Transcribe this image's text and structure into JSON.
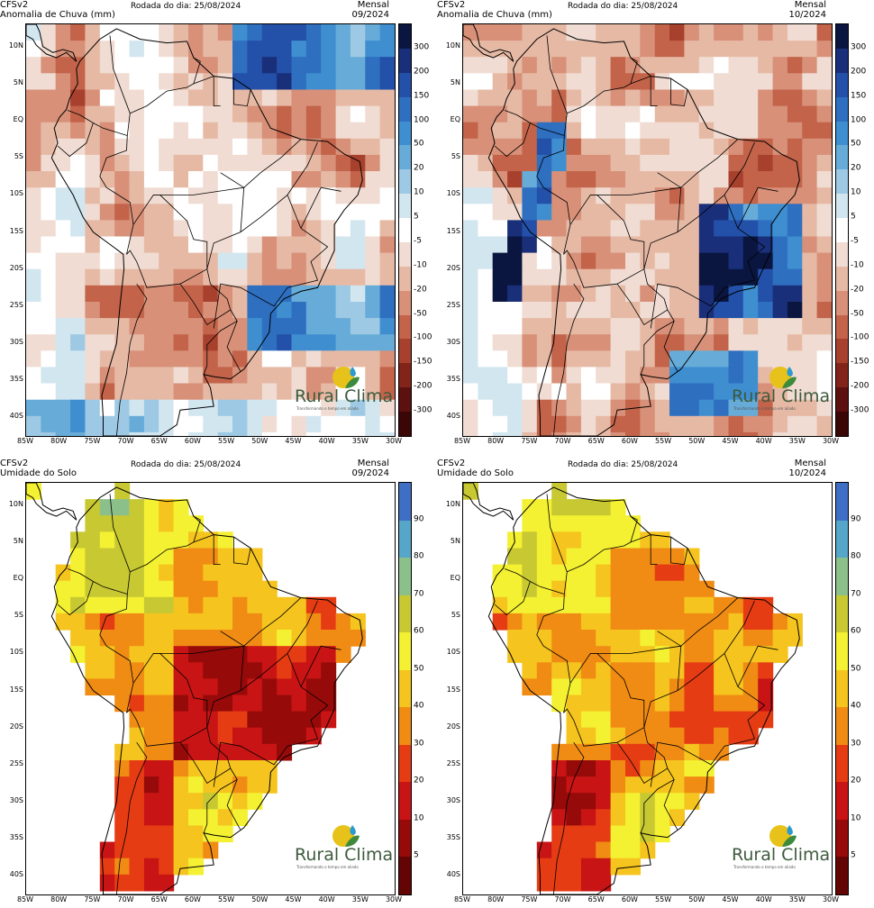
{
  "panels": [
    {
      "model": "CFSv2",
      "variable": "Anomalia de Chuva (mm)",
      "run": "Rodada do dia: 25/08/2024",
      "period": "Mensal",
      "month": "09/2024",
      "scale": "rain",
      "lat_labels": [
        "10N",
        "5N",
        "EQ",
        "5S",
        "10S",
        "15S",
        "20S",
        "25S",
        "30S",
        "35S",
        "40S"
      ],
      "lon_labels": [
        "85W",
        "80W",
        "75W",
        "70W",
        "65W",
        "60W",
        "55W",
        "50W",
        "45W",
        "40W",
        "35W",
        "30W"
      ],
      "colorbar_labels": [
        "300",
        "200",
        "150",
        "100",
        "50",
        "20",
        "10",
        "5",
        "-5",
        "-10",
        "-20",
        "-50",
        "-100",
        "-150",
        "-200",
        "-300"
      ],
      "colorbar_colors": [
        "#0a1640",
        "#1a2f7a",
        "#2350a8",
        "#2e6fc0",
        "#3f8ed0",
        "#67acd8",
        "#9ec9e4",
        "#d2e6f0",
        "#ffffff",
        "#f0dcd2",
        "#e6b9a5",
        "#d89078",
        "#c2634a",
        "#a8402e",
        "#822419",
        "#5c1010",
        "#3a0606"
      ]
    },
    {
      "model": "CFSv2",
      "variable": "Anomalia de Chuva (mm)",
      "run": "Rodada do dia: 25/08/2024",
      "period": "Mensal",
      "month": "10/2024",
      "scale": "rain",
      "lat_labels": [
        "10N",
        "5N",
        "EQ",
        "5S",
        "10S",
        "15S",
        "20S",
        "25S",
        "30S",
        "35S",
        "40S"
      ],
      "lon_labels": [
        "85W",
        "80W",
        "75W",
        "70W",
        "65W",
        "60W",
        "55W",
        "50W",
        "45W",
        "40W",
        "35W",
        "30W"
      ],
      "colorbar_labels": [
        "300",
        "200",
        "150",
        "100",
        "50",
        "20",
        "10",
        "5",
        "-5",
        "-10",
        "-20",
        "-50",
        "-100",
        "-150",
        "-200",
        "-300"
      ],
      "colorbar_colors": [
        "#0a1640",
        "#1a2f7a",
        "#2350a8",
        "#2e6fc0",
        "#3f8ed0",
        "#67acd8",
        "#9ec9e4",
        "#d2e6f0",
        "#ffffff",
        "#f0dcd2",
        "#e6b9a5",
        "#d89078",
        "#c2634a",
        "#a8402e",
        "#822419",
        "#5c1010",
        "#3a0606"
      ]
    },
    {
      "model": "CFSv2",
      "variable": "Umidade do Solo",
      "run": "Rodada do dia: 25/08/2024",
      "period": "Mensal",
      "month": "09/2024",
      "scale": "soil",
      "lat_labels": [
        "10N",
        "5N",
        "EQ",
        "5S",
        "10S",
        "15S",
        "20S",
        "25S",
        "30S",
        "35S",
        "40S"
      ],
      "lon_labels": [
        "85W",
        "80W",
        "75W",
        "70W",
        "65W",
        "60W",
        "55W",
        "50W",
        "45W",
        "40W",
        "35W",
        "30W"
      ],
      "colorbar_labels": [
        "90",
        "80",
        "70",
        "60",
        "50",
        "40",
        "30",
        "20",
        "10",
        "5"
      ],
      "colorbar_colors": [
        "#3f6fc4",
        "#55a6c8",
        "#8cc08a",
        "#c8c832",
        "#f4f032",
        "#f5c41e",
        "#f08c14",
        "#e63c14",
        "#c81414",
        "#960a0a",
        "#640505"
      ]
    },
    {
      "model": "CFSv2",
      "variable": "Umidade do Solo",
      "run": "Rodada do dia: 25/08/2024",
      "period": "Mensal",
      "month": "10/2024",
      "scale": "soil",
      "lat_labels": [
        "10N",
        "5N",
        "EQ",
        "5S",
        "10S",
        "15S",
        "20S",
        "25S",
        "30S",
        "35S",
        "40S"
      ],
      "lon_labels": [
        "85W",
        "80W",
        "75W",
        "70W",
        "65W",
        "60W",
        "55W",
        "50W",
        "45W",
        "40W",
        "35W",
        "30W"
      ],
      "colorbar_labels": [
        "90",
        "80",
        "70",
        "60",
        "50",
        "40",
        "30",
        "20",
        "10",
        "5"
      ],
      "colorbar_colors": [
        "#3f6fc4",
        "#55a6c8",
        "#8cc08a",
        "#c8c832",
        "#f4f032",
        "#f5c41e",
        "#f08c14",
        "#e63c14",
        "#c81414",
        "#960a0a",
        "#640505"
      ]
    }
  ],
  "logo": {
    "title": "Rural Clima",
    "tagline": "Transformando o tempo em aliado"
  }
}
